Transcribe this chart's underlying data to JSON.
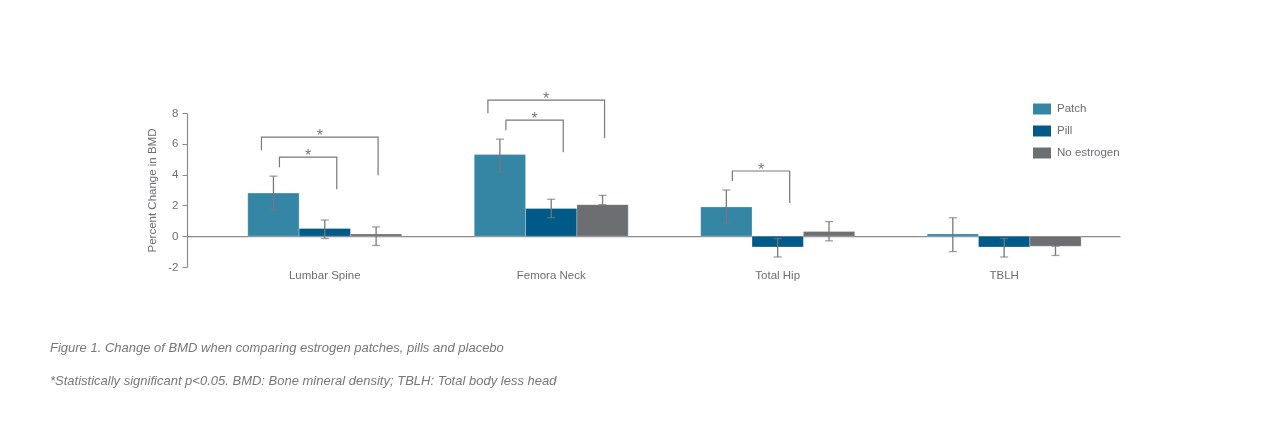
{
  "chart_data": {
    "type": "bar",
    "ylabel": "Percent Change in BMD",
    "categories": [
      "Lumbar Spine",
      "Femora Neck",
      "Total Hip",
      "TBLH"
    ],
    "series": [
      {
        "name": "Patch",
        "color": "#3585a5",
        "values": [
          2.8,
          5.3,
          1.9,
          0.15
        ],
        "errors": [
          [
            1.7,
            3.9
          ],
          [
            4.2,
            6.3
          ],
          [
            0.8,
            3.0
          ],
          [
            -1.0,
            1.2
          ]
        ]
      },
      {
        "name": "Pill",
        "color": "#005a87",
        "values": [
          0.5,
          1.8,
          -0.7,
          -0.7
        ],
        "errors": [
          [
            -0.15,
            1.05
          ],
          [
            1.2,
            2.4
          ],
          [
            -1.35,
            -0.15
          ],
          [
            -1.35,
            -0.15
          ]
        ]
      },
      {
        "name": "No estrogen",
        "color": "#6d6e71",
        "values": [
          0.15,
          2.05,
          0.3,
          -0.65
        ],
        "errors": [
          [
            -0.6,
            0.6
          ],
          [
            2.05,
            2.65
          ],
          [
            -0.3,
            0.95
          ],
          [
            -1.25,
            -0.65
          ]
        ]
      }
    ],
    "ylim": [
      -2,
      8
    ],
    "yticks": [
      -2,
      0,
      2,
      4,
      6,
      8
    ],
    "legend": "top right",
    "annotations": [
      "*",
      "*",
      "*",
      "*",
      "*",
      "Figure 1. Change of BMD when comparing estrogen patches, pills and placebo",
      "*Statistically significant p<0.05. BMD: Bone mineral density; TBLH: Total body less head"
    ]
  }
}
